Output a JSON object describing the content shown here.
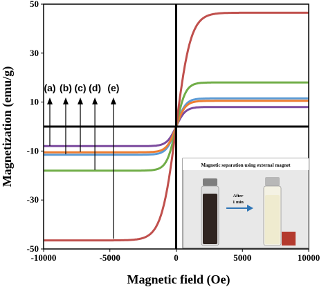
{
  "chart_data": {
    "type": "line",
    "xlabel": "Magnetic field (Oe)",
    "ylabel": "Magnetization (emu/g)",
    "xlim": [
      -10000,
      10000
    ],
    "ylim": [
      -50,
      50
    ],
    "x_ticks": [
      -10000,
      -5000,
      0,
      5000,
      10000
    ],
    "y_ticks": [
      -50,
      -30,
      -10,
      10,
      30,
      50
    ],
    "grid": false,
    "series": [
      {
        "label": "(a)",
        "color": "#7b4a9e",
        "ms": 8.0,
        "h0": 700,
        "arrow_x": -10000
      },
      {
        "label": "(b)",
        "color": "#5b9bd5",
        "ms": 11.5,
        "h0": 700,
        "arrow_x": -8800
      },
      {
        "label": "(c)",
        "color": "#ed7d31",
        "ms": 10.5,
        "h0": 700,
        "arrow_x": -7700
      },
      {
        "label": "(d)",
        "color": "#70ad47",
        "ms": 18.0,
        "h0": 700,
        "arrow_x": -6600
      },
      {
        "label": "(e)",
        "color": "#c0504d",
        "ms": 46.5,
        "h0": 1100,
        "arrow_x": -5200
      }
    ],
    "inset": {
      "title": "Magnetic separation using external magnet",
      "arrow_text_line1": "After",
      "arrow_text_line2": "1 min"
    }
  }
}
